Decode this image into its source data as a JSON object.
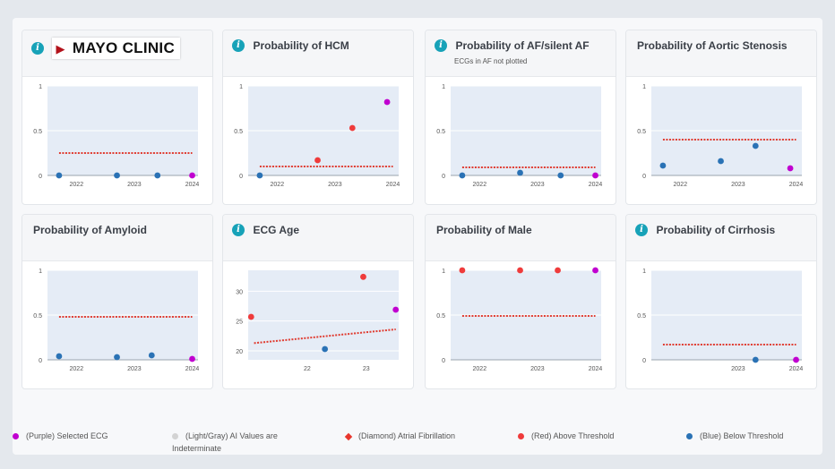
{
  "brand": {
    "name": "MAYO CLINIC"
  },
  "colors": {
    "plot_bg": "#e5ecf6",
    "threshold": "#e03c31",
    "above": "#ef3b3b",
    "below": "#2a72b5",
    "selected": "#c000d0",
    "indeterminate": "#d3d3d3",
    "afib": "#e8362d"
  },
  "chart_data": [
    {
      "type": "scatter",
      "title": "",
      "ylim": [
        0,
        1
      ],
      "yticks": [
        "0",
        "0.5",
        "1"
      ],
      "yticks_values": [
        0,
        0.5,
        1
      ],
      "xlim": [
        2021.5,
        2024.1
      ],
      "xticks": [
        "2022",
        "2023",
        "2024"
      ],
      "xticks_values": [
        2022,
        2023,
        2024
      ],
      "threshold": [
        [
          2021.7,
          0.25
        ],
        [
          2024.0,
          0.25
        ]
      ],
      "points": [
        {
          "x": 2021.7,
          "y": 0.0,
          "cat": "below"
        },
        {
          "x": 2022.7,
          "y": 0.0,
          "cat": "below"
        },
        {
          "x": 2023.4,
          "y": 0.0,
          "cat": "below"
        },
        {
          "x": 2024.0,
          "y": 0.0,
          "cat": "selected"
        }
      ]
    },
    {
      "type": "scatter",
      "title": "Probability of HCM",
      "ylim": [
        0,
        1
      ],
      "yticks": [
        "0",
        "0.5",
        "1"
      ],
      "yticks_values": [
        0,
        0.5,
        1
      ],
      "xlim": [
        2021.5,
        2024.1
      ],
      "xticks": [
        "2022",
        "2023",
        "2024"
      ],
      "xticks_values": [
        2022,
        2023,
        2024
      ],
      "threshold": [
        [
          2021.7,
          0.1
        ],
        [
          2024.0,
          0.1
        ]
      ],
      "points": [
        {
          "x": 2021.7,
          "y": 0.0,
          "cat": "below"
        },
        {
          "x": 2022.7,
          "y": 0.17,
          "cat": "above"
        },
        {
          "x": 2023.3,
          "y": 0.53,
          "cat": "above"
        },
        {
          "x": 2023.9,
          "y": 0.82,
          "cat": "selected"
        }
      ]
    },
    {
      "type": "scatter",
      "title": "Probability of AF/silent AF",
      "subtitle": "ECGs in AF not plotted",
      "ylim": [
        0,
        1
      ],
      "yticks": [
        "0",
        "0.5",
        "1"
      ],
      "yticks_values": [
        0,
        0.5,
        1
      ],
      "xlim": [
        2021.5,
        2024.1
      ],
      "xticks": [
        "2022",
        "2023",
        "2024"
      ],
      "xticks_values": [
        2022,
        2023,
        2024
      ],
      "threshold": [
        [
          2021.7,
          0.09
        ],
        [
          2024.0,
          0.09
        ]
      ],
      "points": [
        {
          "x": 2021.7,
          "y": 0.0,
          "cat": "below"
        },
        {
          "x": 2022.7,
          "y": 0.03,
          "cat": "below"
        },
        {
          "x": 2023.4,
          "y": 0.0,
          "cat": "below"
        },
        {
          "x": 2024.0,
          "y": 0.0,
          "cat": "selected"
        }
      ]
    },
    {
      "type": "scatter",
      "title": "Probability of Aortic Stenosis",
      "ylim": [
        0,
        1
      ],
      "yticks": [
        "0",
        "0.5",
        "1"
      ],
      "yticks_values": [
        0,
        0.5,
        1
      ],
      "xlim": [
        2021.5,
        2024.1
      ],
      "xticks": [
        "2022",
        "2023",
        "2024"
      ],
      "xticks_values": [
        2022,
        2023,
        2024
      ],
      "threshold": [
        [
          2021.7,
          0.4
        ],
        [
          2024.0,
          0.4
        ]
      ],
      "points": [
        {
          "x": 2021.7,
          "y": 0.11,
          "cat": "below"
        },
        {
          "x": 2022.7,
          "y": 0.16,
          "cat": "below"
        },
        {
          "x": 2023.3,
          "y": 0.33,
          "cat": "below"
        },
        {
          "x": 2023.9,
          "y": 0.08,
          "cat": "selected"
        }
      ]
    },
    {
      "type": "scatter",
      "title": "Probability of Amyloid",
      "ylim": [
        0,
        1
      ],
      "yticks": [
        "0",
        "0.5",
        "1"
      ],
      "yticks_values": [
        0,
        0.5,
        1
      ],
      "xlim": [
        2021.5,
        2024.1
      ],
      "xticks": [
        "2022",
        "2023",
        "2024"
      ],
      "xticks_values": [
        2022,
        2023,
        2024
      ],
      "threshold": [
        [
          2021.7,
          0.48
        ],
        [
          2024.0,
          0.48
        ]
      ],
      "points": [
        {
          "x": 2021.7,
          "y": 0.04,
          "cat": "below"
        },
        {
          "x": 2022.7,
          "y": 0.03,
          "cat": "below"
        },
        {
          "x": 2023.3,
          "y": 0.05,
          "cat": "below"
        },
        {
          "x": 2024.0,
          "y": 0.01,
          "cat": "selected"
        }
      ]
    },
    {
      "type": "scatter",
      "title": "ECG Age",
      "ylim": [
        18.5,
        33.5
      ],
      "yticks": [
        "20",
        "25",
        "30"
      ],
      "yticks_values": [
        20,
        25,
        30
      ],
      "xlim": [
        21.0,
        23.55
      ],
      "xticks": [
        "22",
        "23"
      ],
      "xticks_values": [
        22,
        23
      ],
      "threshold": [
        [
          21.1,
          21.3
        ],
        [
          23.5,
          23.6
        ]
      ],
      "points": [
        {
          "x": 21.05,
          "y": 25.7,
          "cat": "above"
        },
        {
          "x": 22.3,
          "y": 20.3,
          "cat": "below"
        },
        {
          "x": 22.95,
          "y": 32.4,
          "cat": "above"
        },
        {
          "x": 23.5,
          "y": 26.9,
          "cat": "selected"
        }
      ]
    },
    {
      "type": "scatter",
      "title": "Probability of Male",
      "ylim": [
        0,
        1
      ],
      "yticks": [
        "0",
        "0.5",
        "1"
      ],
      "yticks_values": [
        0,
        0.5,
        1
      ],
      "xlim": [
        2021.5,
        2024.1
      ],
      "xticks": [
        "2022",
        "2023",
        "2024"
      ],
      "xticks_values": [
        2022,
        2023,
        2024
      ],
      "threshold": [
        [
          2021.7,
          0.49
        ],
        [
          2024.0,
          0.49
        ]
      ],
      "points": [
        {
          "x": 2021.7,
          "y": 1.0,
          "cat": "above"
        },
        {
          "x": 2022.7,
          "y": 1.0,
          "cat": "above"
        },
        {
          "x": 2023.35,
          "y": 1.0,
          "cat": "above"
        },
        {
          "x": 2024.0,
          "y": 1.0,
          "cat": "selected"
        }
      ]
    },
    {
      "type": "scatter",
      "title": "Probability of Cirrhosis",
      "ylim": [
        0,
        1
      ],
      "yticks": [
        "0",
        "0.5",
        "1"
      ],
      "yticks_values": [
        0,
        0.5,
        1
      ],
      "xlim": [
        2021.5,
        2024.1
      ],
      "xticks": [
        "2023",
        "2024"
      ],
      "xticks_values": [
        2023,
        2024
      ],
      "threshold": [
        [
          2021.7,
          0.17
        ],
        [
          2024.0,
          0.17
        ]
      ],
      "points": [
        {
          "x": 2023.3,
          "y": 0.0,
          "cat": "below"
        },
        {
          "x": 2024.0,
          "y": 0.0,
          "cat": "selected"
        }
      ]
    }
  ],
  "legend": [
    {
      "label": "(Purple) Selected ECG",
      "color": "#c000d0",
      "shape": "dot"
    },
    {
      "label": "(Light/Gray) AI Values are Indeterminate",
      "color": "#d3d3d3",
      "shape": "dot"
    },
    {
      "label": "(Diamond) Atrial Fibrillation",
      "color": "#e8362d",
      "shape": "diamond"
    },
    {
      "label": "(Red) Above Threshold",
      "color": "#ef3b3b",
      "shape": "dot"
    },
    {
      "label": "(Blue) Below Threshold",
      "color": "#2a72b5",
      "shape": "dot"
    }
  ]
}
